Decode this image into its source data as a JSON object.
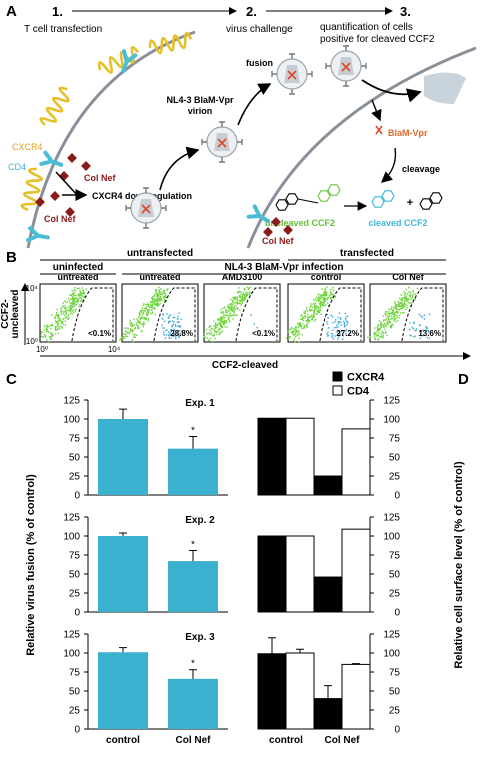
{
  "panel_a": {
    "label": "A",
    "steps": [
      {
        "number": "1.",
        "caption": [
          "T cell transfection"
        ]
      },
      {
        "number": "2.",
        "caption": [
          "virus challenge"
        ]
      },
      {
        "number": "3.",
        "caption": [
          "quantification of cells",
          "positive for cleaved CCF2"
        ]
      }
    ],
    "receptor_labels": {
      "cxcr4": "CXCR4",
      "cd4": "CD4"
    },
    "col_nef": [
      "Col Nef",
      "Col Nef",
      "Col Nef"
    ],
    "downregulation": "CXCR4 downregulation",
    "virion": [
      "NL4-3 BlaM-Vpr",
      "virion"
    ],
    "fusion": "fusion",
    "blam": "BlaM-Vpr",
    "cleavage": "cleavage",
    "plus": "+",
    "uncleaved": "uncleaved CCF2",
    "cleaved": "cleaved CCF2"
  },
  "panel_b": {
    "label": "B",
    "groups": [
      "untransfected",
      "transfected"
    ],
    "subgroups": [
      "uninfected",
      "NL4-3 BlaM-Vpr infection"
    ],
    "plots": [
      {
        "condition": "untreated",
        "percent": "<0.1%"
      },
      {
        "condition": "untreated",
        "percent": "28.8%"
      },
      {
        "condition": "AMD3100",
        "percent": "<0.1%"
      },
      {
        "condition": "control",
        "percent": "27.2%"
      },
      {
        "condition": "Col Nef",
        "percent": "13.6%"
      }
    ],
    "y_label": [
      "CCF2-",
      "uncleaved"
    ],
    "x_label": "CCF2-cleaved",
    "axis_min": "10⁰",
    "axis_max": "10⁴"
  },
  "panel_c_label": "C",
  "panel_d_label": "D",
  "y_label_fusion": "Relative virus fusion (% of control)",
  "y_label_surface": "Relative cell surface level (% of control)",
  "chart_data": [
    {
      "type": "bar",
      "title": "Exp. 1",
      "categories": [
        null,
        null
      ],
      "values": [
        100,
        61
      ],
      "errors": [
        13,
        16
      ],
      "annotations": [
        null,
        "*"
      ],
      "color": "#3cb0cf",
      "ylim": [
        0,
        125
      ],
      "yticks": [
        0,
        25,
        50,
        75,
        100,
        125
      ],
      "y_axis_side": "left"
    },
    {
      "type": "grouped_bar",
      "categories": [
        null,
        null
      ],
      "series": [
        {
          "name": "CXCR4",
          "color": "#000000",
          "values": [
            101,
            25
          ]
        },
        {
          "name": "CD4",
          "color": "#ffffff",
          "values": [
            101,
            87
          ]
        }
      ],
      "ylim": [
        0,
        125
      ],
      "yticks": [
        0,
        25,
        50,
        75,
        100,
        125
      ],
      "y_axis_side": "right",
      "legend": "top-right"
    },
    {
      "type": "bar",
      "title": "Exp. 2",
      "categories": [
        null,
        null
      ],
      "values": [
        100,
        67
      ],
      "errors": [
        4,
        14
      ],
      "annotations": [
        null,
        "*"
      ],
      "color": "#3cb0cf",
      "ylim": [
        0,
        125
      ],
      "yticks": [
        0,
        25,
        50,
        75,
        100,
        125
      ],
      "y_axis_side": "left"
    },
    {
      "type": "grouped_bar",
      "categories": [
        null,
        null
      ],
      "series": [
        {
          "color": "#000000",
          "values": [
            100,
            46
          ]
        },
        {
          "color": "#ffffff",
          "values": [
            100,
            109
          ]
        }
      ],
      "ylim": [
        0,
        125
      ],
      "yticks": [
        0,
        25,
        50,
        75,
        100,
        125
      ],
      "y_axis_side": "right"
    },
    {
      "type": "bar",
      "title": "Exp. 3",
      "categories": [
        "control",
        "Col Nef"
      ],
      "values": [
        101,
        66
      ],
      "errors": [
        6,
        12
      ],
      "annotations": [
        null,
        "*"
      ],
      "color": "#3cb0cf",
      "ylim": [
        0,
        125
      ],
      "yticks": [
        0,
        25,
        50,
        75,
        100,
        125
      ],
      "y_axis_side": "left"
    },
    {
      "type": "grouped_bar",
      "categories": [
        "control",
        "Col Nef"
      ],
      "series": [
        {
          "color": "#000000",
          "values": [
            99,
            40
          ],
          "errors": [
            21,
            17
          ]
        },
        {
          "color": "#ffffff",
          "values": [
            100,
            85
          ],
          "errors": [
            5,
            1
          ]
        }
      ],
      "ylim": [
        0,
        125
      ],
      "yticks": [
        0,
        25,
        50,
        75,
        100,
        125
      ],
      "y_axis_side": "right"
    }
  ]
}
